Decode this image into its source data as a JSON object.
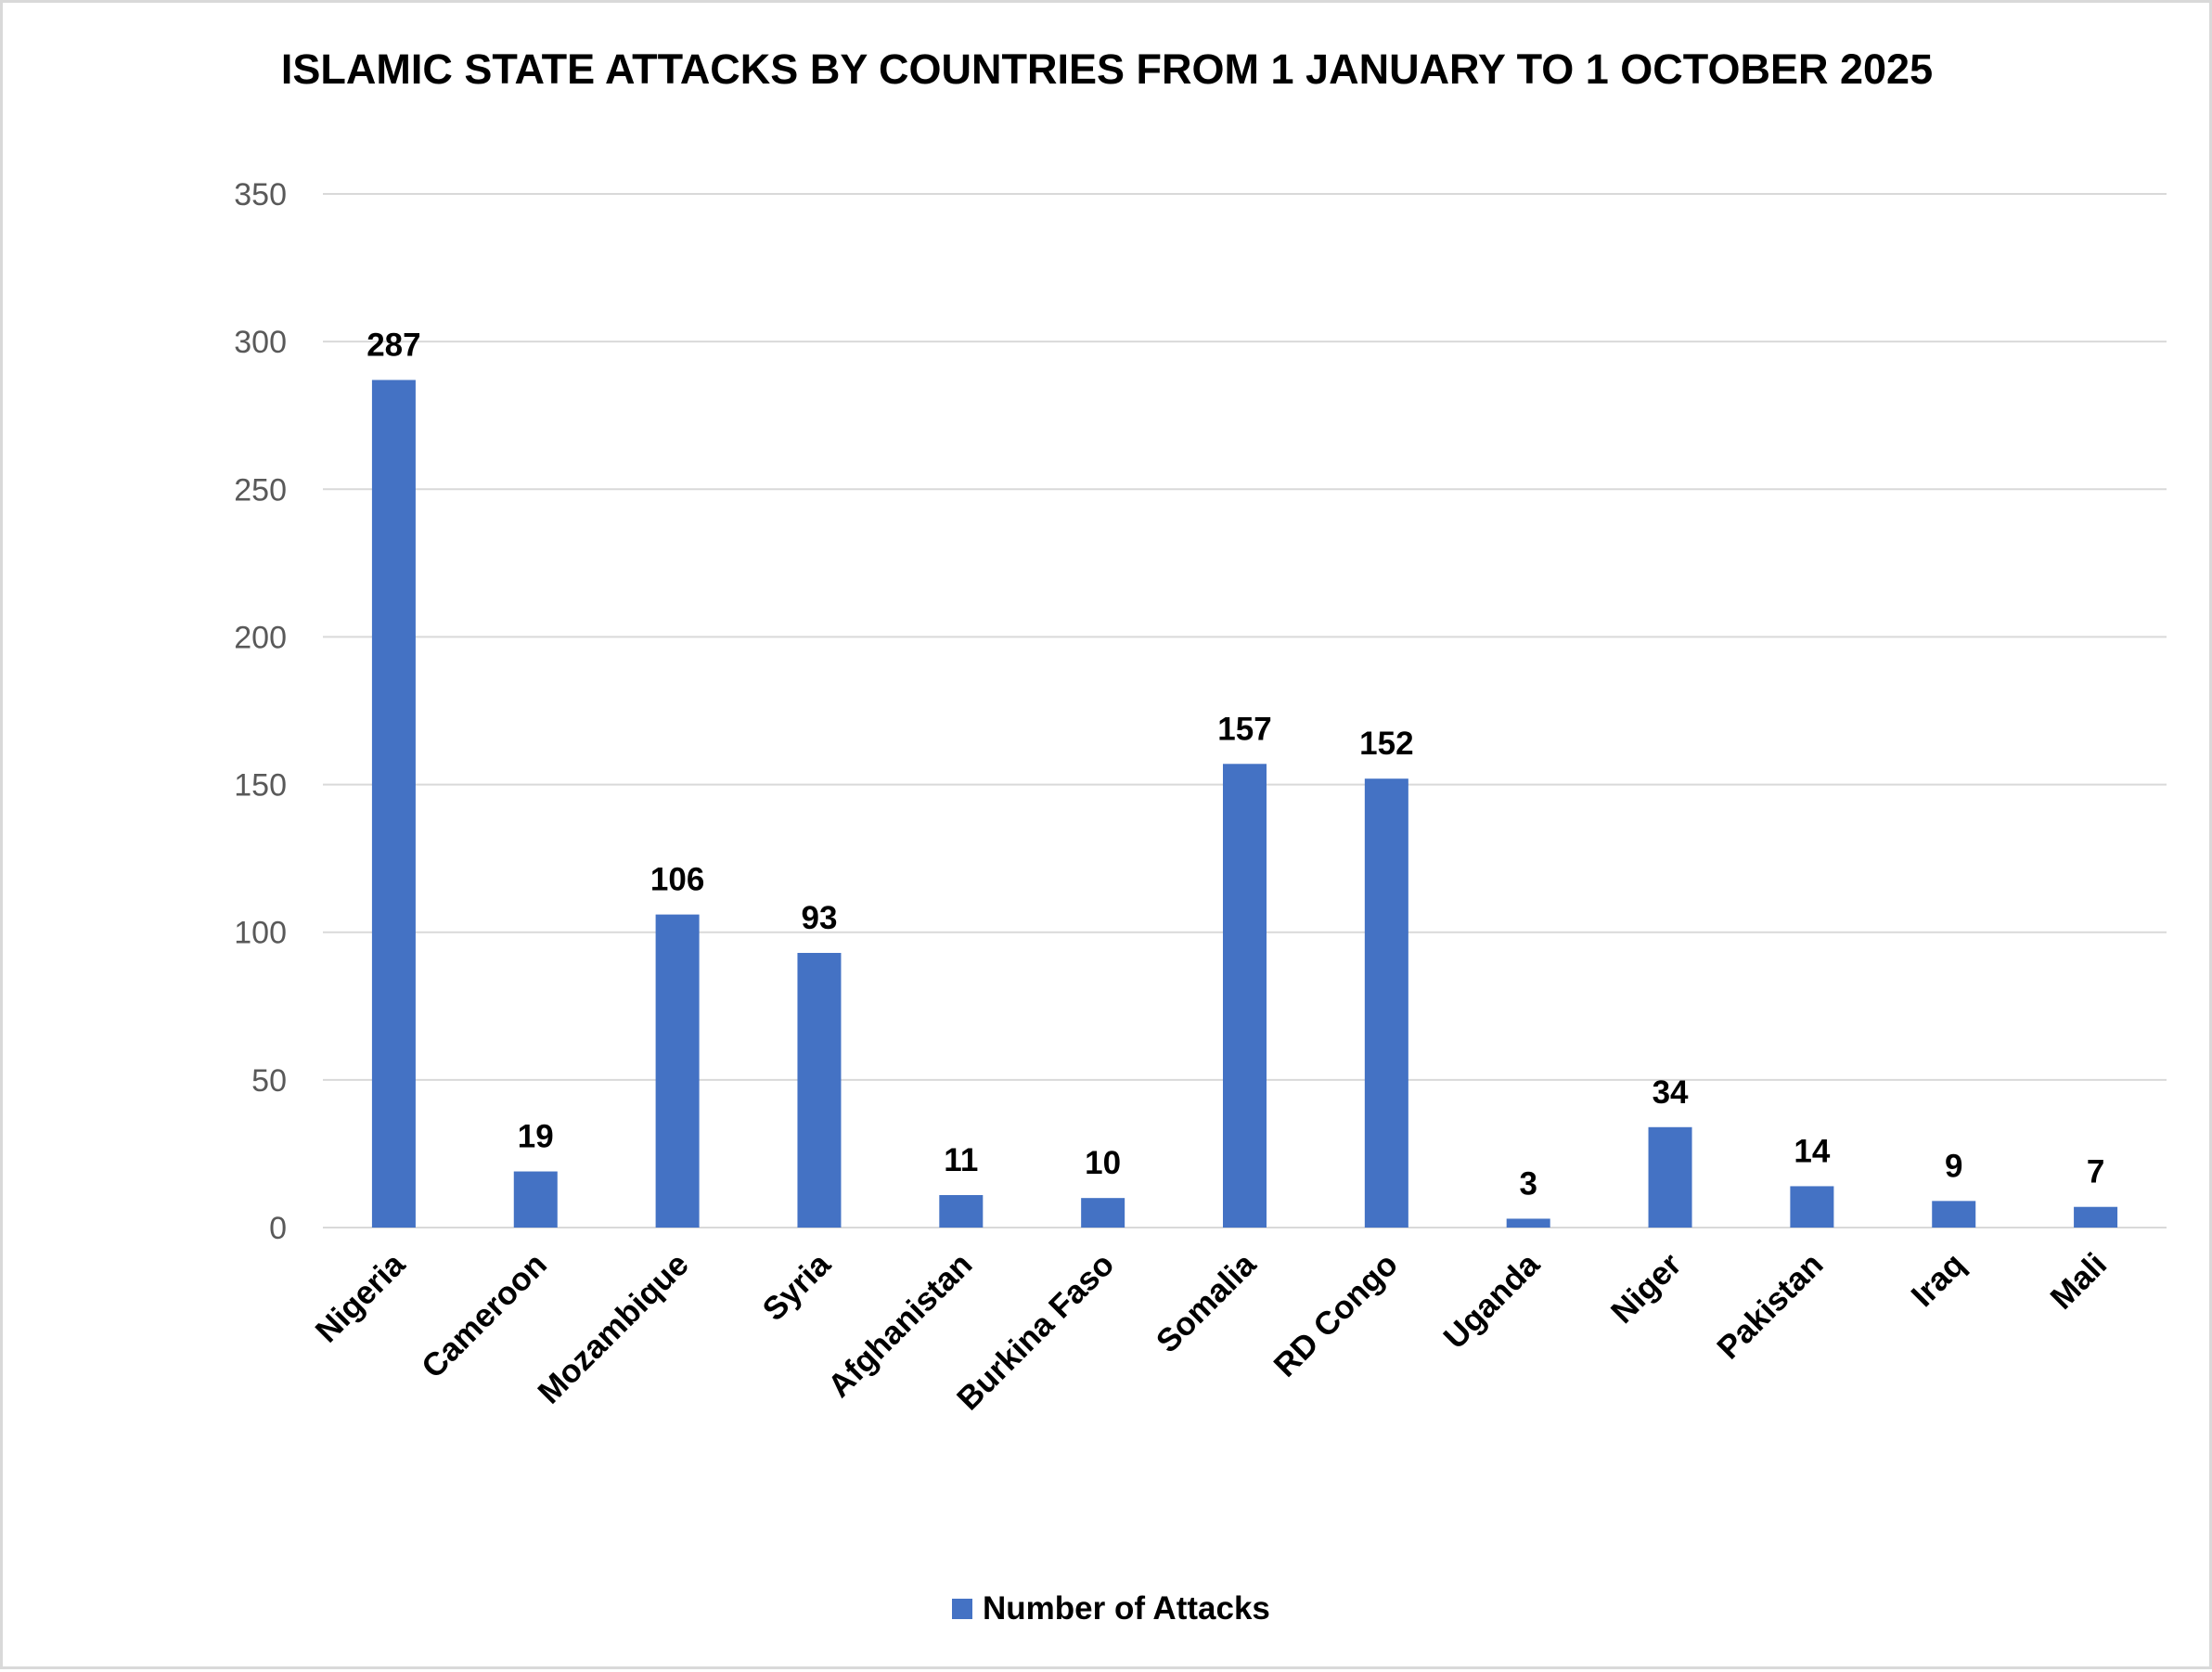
{
  "chart_data": {
    "type": "bar",
    "title": "ISLAMIC STATE ATTACKS BY COUNTRIES FROM 1 JANUARY TO 1 OCTOBER 2025",
    "xlabel": "",
    "ylabel": "",
    "categories": [
      "Nigeria",
      "Cameroon",
      "Mozambique",
      "Syria",
      "Afghanistan",
      "Burkina Faso",
      "Somalia",
      "RD Congo",
      "Uganda",
      "Niger",
      "Pakistan",
      "Iraq",
      "Mali"
    ],
    "series": [
      {
        "name": "Number of Attacks",
        "values": [
          287,
          19,
          106,
          93,
          11,
          10,
          157,
          152,
          3,
          34,
          14,
          9,
          7
        ],
        "color": "#4472c4"
      }
    ],
    "ylim": [
      0,
      350
    ],
    "yticks": [
      0,
      50,
      100,
      150,
      200,
      250,
      300,
      350
    ],
    "grid": true,
    "data_labels": true,
    "legend_position": "bottom"
  }
}
